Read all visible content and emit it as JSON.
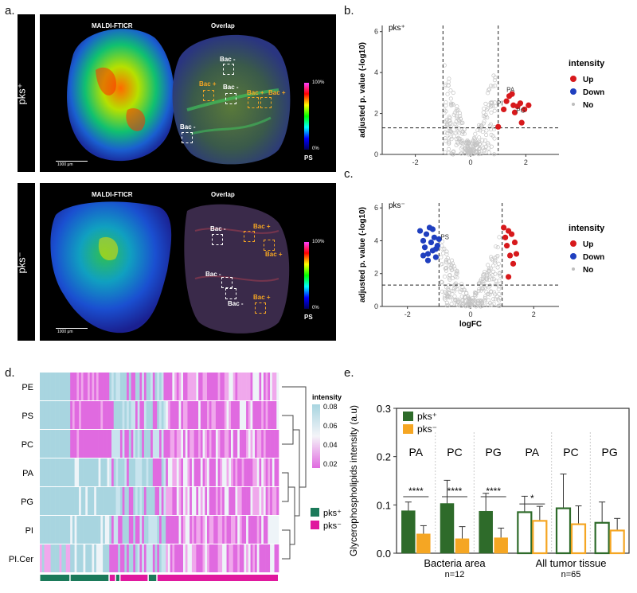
{
  "panel_labels": {
    "a": "a.",
    "b": "b.",
    "c": "c.",
    "d": "d.",
    "e": "e."
  },
  "panel_a": {
    "rows": [
      {
        "side_label": "pks⁺",
        "left_title": "MALDI-FTICR",
        "right_title": "Overlap",
        "scalebar": "1000 μm"
      },
      {
        "side_label": "pks⁻",
        "left_title": "MALDI-FTICR",
        "right_title": "Overlap",
        "scalebar": "1000 μm"
      }
    ],
    "colorbar": {
      "top": "100%",
      "bottom": "0%",
      "name": "PS"
    },
    "box_labels_top": [
      "Bac -",
      "Bac +",
      "Bac -",
      "Bac +",
      "Bac +",
      "Bac -"
    ],
    "box_labels_bottom": [
      "Bac -",
      "Bac +",
      "Bac +",
      "Bac -",
      "Bac -",
      "Bac +"
    ],
    "colors": {
      "bac_plus": "#f5a623",
      "bac_minus": "#ffffff"
    }
  },
  "chart_data": [
    {
      "id": "b",
      "type": "scatter",
      "title": "pks⁺",
      "xlabel": "logFC",
      "ylabel": "adjusted p. value (-log10)",
      "xlim": [
        -3.2,
        3.2
      ],
      "ylim": [
        0,
        6.3
      ],
      "xticks": [
        -2,
        0,
        2
      ],
      "yticks": [
        0,
        2,
        4,
        6
      ],
      "vlines": [
        -1,
        1
      ],
      "hline": 1.3,
      "legend_title": "intensity",
      "legend": [
        {
          "name": "Up",
          "color": "#d7191c"
        },
        {
          "name": "Down",
          "color": "#1f3fbf"
        },
        {
          "name": "No",
          "color": "#bdbdbd"
        }
      ],
      "up_points": [
        [
          1.0,
          1.35
        ],
        [
          1.2,
          2.2
        ],
        [
          1.3,
          2.6
        ],
        [
          1.4,
          2.85
        ],
        [
          1.5,
          2.95
        ],
        [
          1.55,
          2.4
        ],
        [
          1.6,
          2.05
        ],
        [
          1.7,
          2.35
        ],
        [
          1.8,
          2.5
        ],
        [
          1.85,
          1.55
        ],
        [
          1.95,
          2.2
        ],
        [
          2.1,
          2.4
        ]
      ],
      "down_points": [],
      "annotations": [
        {
          "text": "PA",
          "x": 1.3,
          "y": 3.05
        },
        {
          "text": "PI",
          "x": 0.95,
          "y": 2.4
        },
        {
          "text": "PG",
          "x": 1.65,
          "y": 2.05
        }
      ]
    },
    {
      "id": "c",
      "type": "scatter",
      "title": "pks⁻",
      "xlabel": "logFC",
      "ylabel": "adjusted p. value (-log10)",
      "xlim": [
        -2.8,
        2.8
      ],
      "ylim": [
        0,
        6.3
      ],
      "xticks": [
        -2,
        0,
        2
      ],
      "yticks": [
        0,
        2,
        4,
        6
      ],
      "vlines": [
        -1,
        1
      ],
      "hline": 1.3,
      "legend_title": "intensity",
      "legend": [
        {
          "name": "Up",
          "color": "#d7191c"
        },
        {
          "name": "Down",
          "color": "#1f3fbf"
        },
        {
          "name": "No",
          "color": "#bdbdbd"
        }
      ],
      "up_points": [
        [
          1.05,
          4.8
        ],
        [
          1.1,
          4.2
        ],
        [
          1.15,
          3.7
        ],
        [
          1.2,
          4.6
        ],
        [
          1.25,
          3.1
        ],
        [
          1.3,
          4.4
        ],
        [
          1.35,
          2.6
        ],
        [
          1.4,
          3.9
        ],
        [
          1.45,
          3.2
        ],
        [
          1.2,
          1.8
        ]
      ],
      "down_points": [
        [
          -1.6,
          4.6
        ],
        [
          -1.5,
          4.0
        ],
        [
          -1.45,
          3.6
        ],
        [
          -1.4,
          4.4
        ],
        [
          -1.35,
          3.2
        ],
        [
          -1.3,
          4.8
        ],
        [
          -1.25,
          3.9
        ],
        [
          -1.2,
          3.4
        ],
        [
          -1.15,
          4.2
        ],
        [
          -1.1,
          3.0
        ],
        [
          -1.05,
          3.7
        ],
        [
          -1.0,
          4.1
        ],
        [
          -1.5,
          3.1
        ],
        [
          -1.2,
          4.7
        ],
        [
          -1.35,
          2.8
        ],
        [
          -1.1,
          3.5
        ]
      ],
      "annotations": [
        {
          "text": "PS",
          "x": -0.95,
          "y": 4.1
        }
      ]
    },
    {
      "id": "d",
      "type": "heatmap",
      "rows": [
        "PE",
        "PS",
        "PC",
        "PA",
        "PG",
        "PI",
        "PI.Cer"
      ],
      "legend_title": "intensity",
      "legend_ticks": [
        0.08,
        0.06,
        0.04,
        0.02
      ],
      "groups": [
        {
          "name": "pks⁺",
          "color": "#1b7a5a"
        },
        {
          "name": "pks⁻",
          "color": "#e0189e"
        }
      ]
    },
    {
      "id": "e",
      "type": "bar",
      "ylabel": "Glycerophospholipids intensity (a.u)",
      "ylim": [
        0,
        0.3
      ],
      "yticks": [
        0.0,
        0.1,
        0.2,
        0.3
      ],
      "legend": [
        {
          "name": "pks⁺",
          "color": "#2e6b2a"
        },
        {
          "name": "pks⁻",
          "color": "#f5a623"
        }
      ],
      "group_labels": [
        {
          "name": "Bacteria area",
          "n": "n=12"
        },
        {
          "name": "All tumor tissue",
          "n": "n=65"
        }
      ],
      "categories": [
        "PA",
        "PC",
        "PG",
        "PA",
        "PC",
        "PG"
      ],
      "series": [
        {
          "name": "pks⁺",
          "values": [
            0.088,
            0.103,
            0.087,
            0.085,
            0.093,
            0.063
          ],
          "errors": [
            0.018,
            0.048,
            0.037,
            0.033,
            0.071,
            0.043
          ]
        },
        {
          "name": "pks⁻",
          "values": [
            0.04,
            0.03,
            0.032,
            0.067,
            0.06,
            0.047
          ],
          "errors": [
            0.017,
            0.025,
            0.02,
            0.03,
            0.038,
            0.025
          ]
        }
      ],
      "significance": [
        "****",
        "****",
        "****",
        "*",
        "",
        ""
      ]
    }
  ]
}
